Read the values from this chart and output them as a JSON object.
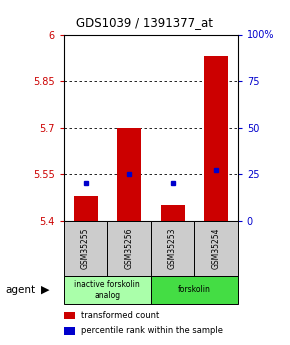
{
  "title": "GDS1039 / 1391377_at",
  "samples": [
    "GSM35255",
    "GSM35256",
    "GSM35253",
    "GSM35254"
  ],
  "bar_values": [
    5.481,
    5.698,
    5.452,
    5.93
  ],
  "bar_base": 5.4,
  "percentile_values": [
    5.522,
    5.551,
    5.522,
    5.565
  ],
  "ylim": [
    5.4,
    6.0
  ],
  "yticks_left": [
    5.4,
    5.55,
    5.7,
    5.85,
    6.0
  ],
  "yticks_right": [
    0,
    25,
    50,
    75,
    100
  ],
  "ytick_labels_left": [
    "5.4",
    "5.55",
    "5.7",
    "5.85",
    "6"
  ],
  "ytick_labels_right": [
    "0",
    "25",
    "50",
    "75",
    "100%"
  ],
  "gridlines": [
    5.55,
    5.7,
    5.85
  ],
  "bar_color": "#cc0000",
  "percentile_color": "#0000cc",
  "agent_groups": [
    {
      "label": "inactive forskolin\nanalog",
      "span": [
        0,
        2
      ],
      "color": "#aaffaa"
    },
    {
      "label": "forskolin",
      "span": [
        2,
        4
      ],
      "color": "#44dd44"
    }
  ],
  "legend_items": [
    {
      "label": "transformed count",
      "color": "#cc0000"
    },
    {
      "label": "percentile rank within the sample",
      "color": "#0000cc"
    }
  ],
  "bar_width": 0.55,
  "xlabel_color_left": "#cc0000",
  "xlabel_color_right": "#0000cc",
  "background_plot": "#ffffff",
  "sample_box_color": "#cccccc",
  "agent_label": "agent"
}
